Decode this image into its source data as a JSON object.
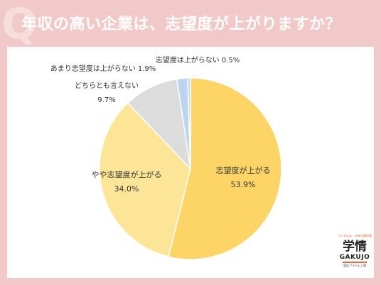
{
  "title": "年収の高い企業は、志望度が上がりますか？",
  "q_mark": "Q",
  "logo": {
    "tagline": "つくるのは、未来の選択肢",
    "main": "学情",
    "english": "GAKUJO",
    "sub": "東証プライム上場"
  },
  "colors": {
    "background": "#f2c9c9",
    "slice_1": "#fdd466",
    "slice_2": "#fde597",
    "slice_3": "#dcdcdc",
    "slice_4": "#bcd4ee",
    "slice_5": "#bcd4ee"
  },
  "chart_data": {
    "type": "pie",
    "slices": [
      {
        "label": "志望度が上がる",
        "value": 53.9,
        "value_label": "53.9%"
      },
      {
        "label": "やや志望度が上がる",
        "value": 34.0,
        "value_label": "34.0%"
      },
      {
        "label": "どちらとも言えない",
        "value": 9.7,
        "value_label": "9.7%"
      },
      {
        "label": "あまり志望度は上がらない",
        "value": 1.9,
        "value_label": "1.9%"
      },
      {
        "label": "志望度は上がらない",
        "value": 0.5,
        "value_label": "0.5%"
      }
    ]
  }
}
